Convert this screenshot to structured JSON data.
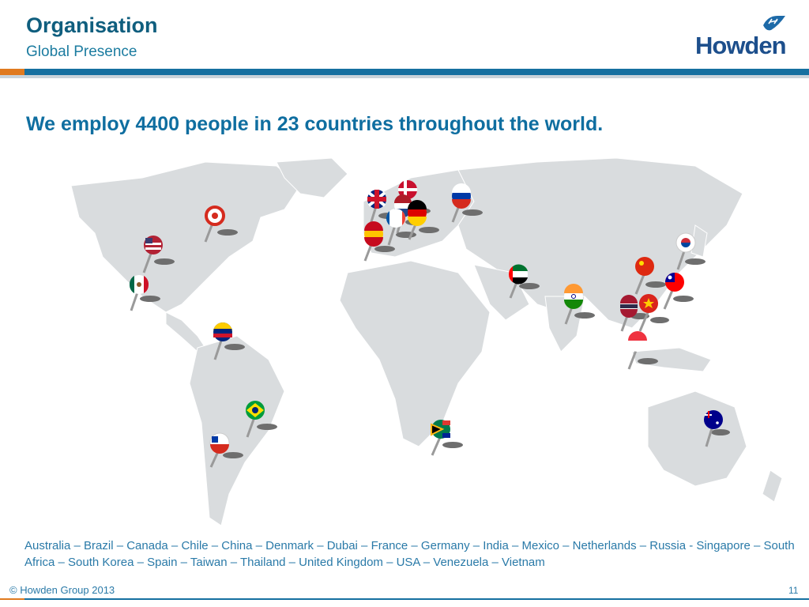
{
  "header": {
    "title": "Organisation",
    "subtitle": "Global Presence"
  },
  "logo": {
    "text": "Howden",
    "brand_color": "#1d4f8c"
  },
  "headline": "We employ 4400 people in 23 countries throughout the world.",
  "countries_text": "Australia – Brazil –  Canada – Chile – China – Denmark – Dubai – France – Germany – India – Mexico – Netherlands – Russia - Singapore – South Africa – South Korea –  Spain – Taiwan – Thailand – United Kingdom – USA – Venezuela – Vietnam",
  "pins": [
    {
      "country": "canada-flag-pin",
      "colors": [
        "#d52b1e",
        "#ffffff"
      ]
    },
    {
      "country": "usa-flag-pin",
      "colors": [
        "#b22234",
        "#3c3b6e"
      ]
    },
    {
      "country": "mexico-flag-pin",
      "colors": [
        "#006847",
        "#ce1126"
      ]
    },
    {
      "country": "venezuela-flag-pin",
      "colors": [
        "#ffcc00",
        "#00247d"
      ]
    },
    {
      "country": "brazil-flag-pin",
      "colors": [
        "#009c3b",
        "#ffdf00"
      ]
    },
    {
      "country": "chile-flag-pin",
      "colors": [
        "#d52b1e",
        "#0039a6"
      ]
    },
    {
      "country": "united-kingdom-flag-pin",
      "colors": [
        "#00247d",
        "#cf142b"
      ]
    },
    {
      "country": "denmark-flag-pin",
      "colors": [
        "#c8102e",
        "#ffffff"
      ]
    },
    {
      "country": "netherlands-flag-pin",
      "colors": [
        "#ae1c28",
        "#21468b"
      ]
    },
    {
      "country": "france-flag-pin",
      "colors": [
        "#0055a4",
        "#ef4135"
      ]
    },
    {
      "country": "germany-flag-pin",
      "colors": [
        "#000000",
        "#dd0000"
      ]
    },
    {
      "country": "spain-flag-pin",
      "colors": [
        "#c60b1e",
        "#ffc400"
      ]
    },
    {
      "country": "russia-flag-pin",
      "colors": [
        "#0039a6",
        "#d52b1e"
      ]
    },
    {
      "country": "dubai-flag-pin",
      "colors": [
        "#00732f",
        "#000000"
      ]
    },
    {
      "country": "south-africa-flag-pin",
      "colors": [
        "#007a4d",
        "#ffb612"
      ]
    },
    {
      "country": "india-flag-pin",
      "colors": [
        "#ff9933",
        "#138808"
      ]
    },
    {
      "country": "china-flag-pin",
      "colors": [
        "#de2910",
        "#ffde00"
      ]
    },
    {
      "country": "south-korea-flag-pin",
      "colors": [
        "#cd2e3a",
        "#0047a0"
      ]
    },
    {
      "country": "taiwan-flag-pin",
      "colors": [
        "#fe0000",
        "#000095"
      ]
    },
    {
      "country": "thailand-flag-pin",
      "colors": [
        "#a51931",
        "#2d2a4a"
      ]
    },
    {
      "country": "vietnam-flag-pin",
      "colors": [
        "#da251d",
        "#ffcd00"
      ]
    },
    {
      "country": "singapore-flag-pin",
      "colors": [
        "#ef3340",
        "#ffffff"
      ]
    },
    {
      "country": "australia-flag-pin",
      "colors": [
        "#00008b",
        "#ff0000"
      ]
    }
  ],
  "footer": {
    "copyright": "© Howden Group 2013",
    "page_number": "11"
  },
  "colors": {
    "accent_orange": "#e07a1f",
    "accent_blue": "#1670a0",
    "map_land": "#d9dcde"
  }
}
